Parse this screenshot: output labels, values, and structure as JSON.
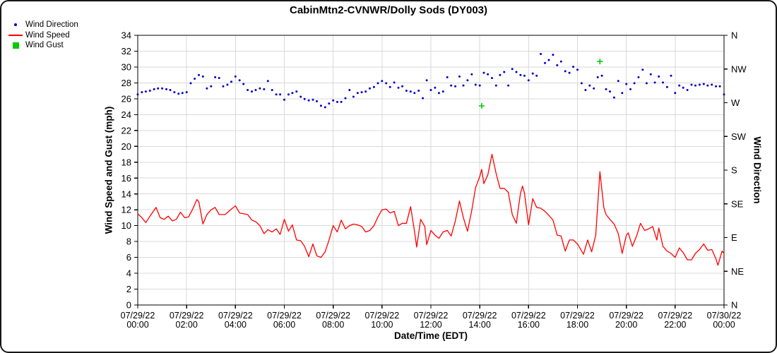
{
  "chart_data": {
    "type": "mixed",
    "title": "CabinMtn2-CVNWR/Dolly Sods (DY003)",
    "grid": {
      "show": true,
      "color": "#d9d9d9"
    },
    "frame_color": "#000000",
    "x_axis": {
      "label": "Date/Time (EDT)",
      "min_hours": 0,
      "max_hours": 24,
      "tick_interval_hours": 2,
      "tick_labels": [
        {
          "date": "07/29/22",
          "time": "00:00"
        },
        {
          "date": "07/29/22",
          "time": "02:00"
        },
        {
          "date": "07/29/22",
          "time": "04:00"
        },
        {
          "date": "07/29/22",
          "time": "06:00"
        },
        {
          "date": "07/29/22",
          "time": "08:00"
        },
        {
          "date": "07/29/22",
          "time": "10:00"
        },
        {
          "date": "07/29/22",
          "time": "12:00"
        },
        {
          "date": "07/29/22",
          "time": "14:00"
        },
        {
          "date": "07/29/22",
          "time": "16:00"
        },
        {
          "date": "07/29/22",
          "time": "18:00"
        },
        {
          "date": "07/29/22",
          "time": "20:00"
        },
        {
          "date": "07/29/22",
          "time": "22:00"
        },
        {
          "date": "07/30/22",
          "time": "00:00"
        }
      ]
    },
    "y_left": {
      "label": "Wind Speed and Gust (mph)",
      "min": 0,
      "max": 34,
      "tick_step": 2
    },
    "y_right": {
      "label": "Wind Direction",
      "min_deg": 0,
      "max_deg": 360,
      "tick_step_deg": 45,
      "tick_labels_top_to_bottom": [
        "N",
        "NW",
        "W",
        "SW",
        "S",
        "SE",
        "E",
        "NE",
        "N"
      ]
    },
    "series": [
      {
        "name": "Wind Direction",
        "type": "scatter-dot",
        "color": "#0000cd",
        "y_axis": "right_degrees",
        "points": [
          [
            0,
            281
          ],
          [
            0.17,
            284
          ],
          [
            0.33,
            285
          ],
          [
            0.5,
            286
          ],
          [
            0.67,
            288
          ],
          [
            0.83,
            289
          ],
          [
            1,
            289
          ],
          [
            1.17,
            288
          ],
          [
            1.33,
            287
          ],
          [
            1.5,
            284
          ],
          [
            1.67,
            282
          ],
          [
            1.83,
            283
          ],
          [
            2,
            284
          ],
          [
            2.17,
            296
          ],
          [
            2.33,
            302
          ],
          [
            2.5,
            307
          ],
          [
            2.67,
            305
          ],
          [
            2.83,
            289
          ],
          [
            3,
            292
          ],
          [
            3.17,
            304
          ],
          [
            3.33,
            303
          ],
          [
            3.5,
            292
          ],
          [
            3.67,
            294
          ],
          [
            3.83,
            298
          ],
          [
            4,
            305
          ],
          [
            4.17,
            300
          ],
          [
            4.33,
            295
          ],
          [
            4.5,
            287
          ],
          [
            4.67,
            285
          ],
          [
            4.83,
            287
          ],
          [
            5,
            289
          ],
          [
            5.17,
            288
          ],
          [
            5.33,
            299
          ],
          [
            5.5,
            287
          ],
          [
            5.67,
            281
          ],
          [
            5.83,
            281
          ],
          [
            6,
            274
          ],
          [
            6.17,
            281
          ],
          [
            6.33,
            283
          ],
          [
            6.5,
            285
          ],
          [
            6.67,
            278
          ],
          [
            6.83,
            275
          ],
          [
            7,
            273
          ],
          [
            7.17,
            274
          ],
          [
            7.33,
            272
          ],
          [
            7.5,
            266
          ],
          [
            7.67,
            264
          ],
          [
            7.83,
            269
          ],
          [
            8,
            273
          ],
          [
            8.17,
            271
          ],
          [
            8.33,
            271
          ],
          [
            8.5,
            276
          ],
          [
            8.67,
            287
          ],
          [
            8.83,
            278
          ],
          [
            9,
            283
          ],
          [
            9.17,
            284
          ],
          [
            9.33,
            285
          ],
          [
            9.5,
            289
          ],
          [
            9.67,
            291
          ],
          [
            9.83,
            296
          ],
          [
            10,
            299
          ],
          [
            10.17,
            296
          ],
          [
            10.33,
            291
          ],
          [
            10.5,
            297
          ],
          [
            10.67,
            290
          ],
          [
            10.83,
            292
          ],
          [
            11,
            286
          ],
          [
            11.17,
            285
          ],
          [
            11.33,
            283
          ],
          [
            11.5,
            286
          ],
          [
            11.67,
            276
          ],
          [
            11.83,
            300
          ],
          [
            12,
            287
          ],
          [
            12.17,
            290
          ],
          [
            12.33,
            283
          ],
          [
            12.5,
            285
          ],
          [
            12.67,
            304
          ],
          [
            12.83,
            293
          ],
          [
            13,
            292
          ],
          [
            13.17,
            305
          ],
          [
            13.33,
            293
          ],
          [
            13.5,
            300
          ],
          [
            13.67,
            308
          ],
          [
            13.83,
            294
          ],
          [
            14,
            293
          ],
          [
            14.17,
            310
          ],
          [
            14.33,
            308
          ],
          [
            14.5,
            303
          ],
          [
            14.67,
            293
          ],
          [
            14.83,
            307
          ],
          [
            15,
            311
          ],
          [
            15.17,
            293
          ],
          [
            15.33,
            315
          ],
          [
            15.5,
            311
          ],
          [
            15.67,
            307
          ],
          [
            15.83,
            306
          ],
          [
            16,
            300
          ],
          [
            16.17,
            309
          ],
          [
            16.33,
            306
          ],
          [
            16.5,
            335
          ],
          [
            16.67,
            323
          ],
          [
            16.83,
            327
          ],
          [
            17,
            334
          ],
          [
            17.17,
            320
          ],
          [
            17.33,
            325
          ],
          [
            17.5,
            312
          ],
          [
            17.67,
            310
          ],
          [
            17.83,
            318
          ],
          [
            18,
            314
          ],
          [
            18.17,
            296
          ],
          [
            18.33,
            287
          ],
          [
            18.5,
            293
          ],
          [
            18.67,
            289
          ],
          [
            18.83,
            304
          ],
          [
            19,
            306
          ],
          [
            19.17,
            288
          ],
          [
            19.33,
            285
          ],
          [
            19.5,
            277
          ],
          [
            19.67,
            299
          ],
          [
            19.83,
            283
          ],
          [
            20,
            295
          ],
          [
            20.17,
            288
          ],
          [
            20.33,
            296
          ],
          [
            20.5,
            304
          ],
          [
            20.67,
            314
          ],
          [
            20.83,
            296
          ],
          [
            21,
            308
          ],
          [
            21.17,
            297
          ],
          [
            21.33,
            305
          ],
          [
            21.5,
            297
          ],
          [
            21.67,
            291
          ],
          [
            21.83,
            306
          ],
          [
            22,
            283
          ],
          [
            22.17,
            293
          ],
          [
            22.33,
            290
          ],
          [
            22.5,
            287
          ],
          [
            22.67,
            294
          ],
          [
            22.83,
            293
          ],
          [
            23,
            294
          ],
          [
            23.17,
            295
          ],
          [
            23.33,
            293
          ],
          [
            23.5,
            294
          ],
          [
            23.67,
            292
          ],
          [
            23.83,
            292
          ],
          [
            24,
            281
          ]
        ]
      },
      {
        "name": "Wind Speed",
        "type": "line",
        "color": "#ff0000",
        "y_axis": "left_mph",
        "points": [
          [
            0,
            11.5
          ],
          [
            0.17,
            11
          ],
          [
            0.33,
            10.4
          ],
          [
            0.5,
            11.2
          ],
          [
            0.75,
            12.3
          ],
          [
            0.92,
            11
          ],
          [
            1.08,
            10.8
          ],
          [
            1.25,
            11.2
          ],
          [
            1.42,
            10.6
          ],
          [
            1.58,
            10.8
          ],
          [
            1.75,
            11.7
          ],
          [
            1.92,
            11
          ],
          [
            2.08,
            11.1
          ],
          [
            2.25,
            12.1
          ],
          [
            2.42,
            13.3
          ],
          [
            2.5,
            13
          ],
          [
            2.67,
            10.2
          ],
          [
            2.83,
            11.4
          ],
          [
            3,
            12
          ],
          [
            3.17,
            12.3
          ],
          [
            3.33,
            11.4
          ],
          [
            3.58,
            11.4
          ],
          [
            3.83,
            12.1
          ],
          [
            4,
            12.5
          ],
          [
            4.17,
            11.6
          ],
          [
            4.33,
            11.5
          ],
          [
            4.5,
            11.4
          ],
          [
            4.67,
            10.7
          ],
          [
            4.83,
            10.5
          ],
          [
            5,
            10
          ],
          [
            5.17,
            9
          ],
          [
            5.33,
            9.5
          ],
          [
            5.5,
            9.2
          ],
          [
            5.67,
            9.6
          ],
          [
            5.83,
            8.9
          ],
          [
            6,
            10.8
          ],
          [
            6.17,
            9.3
          ],
          [
            6.33,
            10.1
          ],
          [
            6.5,
            8.2
          ],
          [
            6.67,
            8.1
          ],
          [
            6.83,
            7.4
          ],
          [
            7,
            6.1
          ],
          [
            7.17,
            7.7
          ],
          [
            7.33,
            6.2
          ],
          [
            7.5,
            6
          ],
          [
            7.67,
            6.7
          ],
          [
            7.83,
            8.2
          ],
          [
            8,
            10
          ],
          [
            8.17,
            9.2
          ],
          [
            8.33,
            10.7
          ],
          [
            8.5,
            9.6
          ],
          [
            8.67,
            10
          ],
          [
            8.83,
            10.2
          ],
          [
            9,
            10.1
          ],
          [
            9.17,
            9.9
          ],
          [
            9.33,
            9.2
          ],
          [
            9.5,
            9.4
          ],
          [
            9.67,
            10
          ],
          [
            9.83,
            11.1
          ],
          [
            10,
            12
          ],
          [
            10.17,
            12.1
          ],
          [
            10.33,
            11.6
          ],
          [
            10.5,
            11.8
          ],
          [
            10.67,
            10
          ],
          [
            10.83,
            10.3
          ],
          [
            11,
            10.3
          ],
          [
            11.17,
            12.4
          ],
          [
            11.33,
            9.3
          ],
          [
            11.42,
            7.3
          ],
          [
            11.58,
            10.8
          ],
          [
            11.75,
            9.9
          ],
          [
            11.83,
            7.6
          ],
          [
            12,
            9.4
          ],
          [
            12.17,
            8.8
          ],
          [
            12.33,
            8.4
          ],
          [
            12.5,
            9.2
          ],
          [
            12.67,
            9.4
          ],
          [
            12.83,
            8.7
          ],
          [
            13,
            10.6
          ],
          [
            13.17,
            13.1
          ],
          [
            13.33,
            11
          ],
          [
            13.5,
            9.3
          ],
          [
            13.67,
            11.9
          ],
          [
            13.83,
            14.8
          ],
          [
            14,
            16.2
          ],
          [
            14.08,
            17.1
          ],
          [
            14.17,
            15.3
          ],
          [
            14.33,
            16.4
          ],
          [
            14.5,
            19
          ],
          [
            14.67,
            16.6
          ],
          [
            14.83,
            14.7
          ],
          [
            15,
            14.7
          ],
          [
            15.17,
            14.2
          ],
          [
            15.33,
            11.4
          ],
          [
            15.5,
            10.3
          ],
          [
            15.58,
            12.2
          ],
          [
            15.67,
            14.1
          ],
          [
            15.75,
            15
          ],
          [
            15.83,
            14.1
          ],
          [
            16,
            10.1
          ],
          [
            16.17,
            13.4
          ],
          [
            16.33,
            12.3
          ],
          [
            16.5,
            12.2
          ],
          [
            16.67,
            11.8
          ],
          [
            16.83,
            11.3
          ],
          [
            17,
            10.7
          ],
          [
            17.17,
            8.8
          ],
          [
            17.33,
            8.7
          ],
          [
            17.5,
            6.8
          ],
          [
            17.67,
            8.2
          ],
          [
            17.83,
            8.2
          ],
          [
            18,
            7.7
          ],
          [
            18.17,
            6.8
          ],
          [
            18.25,
            6.4
          ],
          [
            18.42,
            8.2
          ],
          [
            18.58,
            6.7
          ],
          [
            18.75,
            8.8
          ],
          [
            18.92,
            16.8
          ],
          [
            19.08,
            12.3
          ],
          [
            19.17,
            11.4
          ],
          [
            19.33,
            10.8
          ],
          [
            19.5,
            10.2
          ],
          [
            19.67,
            9
          ],
          [
            19.83,
            6.5
          ],
          [
            20,
            8.8
          ],
          [
            20.08,
            9.1
          ],
          [
            20.25,
            7.4
          ],
          [
            20.42,
            8.7
          ],
          [
            20.58,
            10.3
          ],
          [
            20.75,
            9.4
          ],
          [
            20.92,
            9.6
          ],
          [
            21.08,
            9.9
          ],
          [
            21.25,
            8.2
          ],
          [
            21.33,
            9.7
          ],
          [
            21.5,
            7.4
          ],
          [
            21.67,
            6.8
          ],
          [
            21.83,
            6.5
          ],
          [
            22,
            6
          ],
          [
            22.17,
            7.2
          ],
          [
            22.33,
            6.6
          ],
          [
            22.5,
            5.7
          ],
          [
            22.67,
            5.7
          ],
          [
            22.83,
            6.5
          ],
          [
            23,
            7
          ],
          [
            23.17,
            7.7
          ],
          [
            23.33,
            6.9
          ],
          [
            23.5,
            7
          ],
          [
            23.67,
            5.8
          ],
          [
            23.75,
            5
          ],
          [
            23.92,
            6.8
          ],
          [
            24,
            6.5
          ]
        ]
      },
      {
        "name": "Wind Gust",
        "type": "scatter-plus",
        "color": "#00cc00",
        "y_axis": "left_mph",
        "points": [
          [
            14.08,
            25.1
          ],
          [
            18.92,
            30.7
          ]
        ]
      }
    ]
  }
}
